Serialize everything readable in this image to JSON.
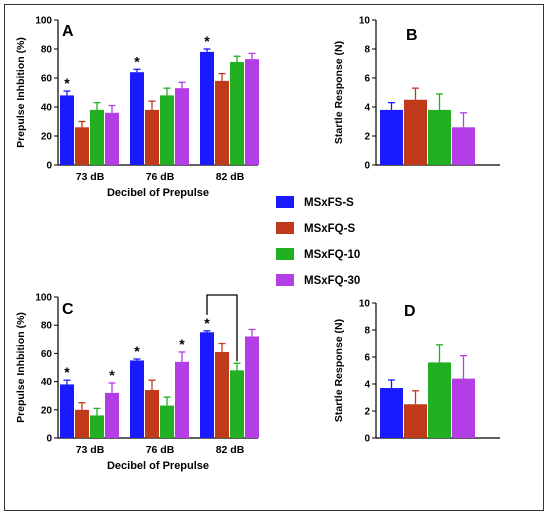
{
  "figure": {
    "legend": [
      {
        "name": "MSxFS-S",
        "color": "#1a1aff"
      },
      {
        "name": "MSxFQ-S",
        "color": "#c0391b"
      },
      {
        "name": "MSxFQ-10",
        "color": "#22b022"
      },
      {
        "name": "MSxFQ-30",
        "color": "#b43ee6"
      }
    ]
  },
  "chart_data": [
    {
      "panel": "A",
      "type": "bar",
      "ylabel": "Prepulse Inhbition (%)",
      "xlabel": "Decibel of Prepulse",
      "ylim": [
        0,
        100
      ],
      "yticks": [
        0,
        20,
        40,
        60,
        80,
        100
      ],
      "categories": [
        "73 dB",
        "76 dB",
        "82 dB"
      ],
      "series": [
        {
          "name": "MSxFS-S",
          "values": [
            48,
            64,
            78
          ],
          "errors": [
            3,
            2,
            2
          ]
        },
        {
          "name": "MSxFQ-S",
          "values": [
            26,
            38,
            58
          ],
          "errors": [
            4,
            6,
            5
          ]
        },
        {
          "name": "MSxFQ-10",
          "values": [
            38,
            48,
            71
          ],
          "errors": [
            5,
            5,
            4
          ]
        },
        {
          "name": "MSxFQ-30",
          "values": [
            36,
            53,
            73
          ],
          "errors": [
            5,
            4,
            4
          ]
        }
      ],
      "annotations": [
        {
          "category": "73 dB",
          "series": "MSxFS-S",
          "text": "*"
        },
        {
          "category": "76 dB",
          "series": "MSxFS-S",
          "text": "*"
        },
        {
          "category": "82 dB",
          "series": "MSxFS-S",
          "text": "*"
        }
      ]
    },
    {
      "panel": "B",
      "type": "bar",
      "ylabel": "Startle Response (N)",
      "xlabel": "",
      "ylim": [
        0,
        10
      ],
      "yticks": [
        0,
        2,
        4,
        6,
        8,
        10
      ],
      "categories": [
        ""
      ],
      "series": [
        {
          "name": "MSxFS-S",
          "values": [
            3.8
          ],
          "errors": [
            0.5
          ]
        },
        {
          "name": "MSxFQ-S",
          "values": [
            4.5
          ],
          "errors": [
            0.8
          ]
        },
        {
          "name": "MSxFQ-10",
          "values": [
            3.8
          ],
          "errors": [
            1.1
          ]
        },
        {
          "name": "MSxFQ-30",
          "values": [
            2.6
          ],
          "errors": [
            1.0
          ]
        }
      ],
      "annotations": []
    },
    {
      "panel": "C",
      "type": "bar",
      "ylabel": "Prepulse Inhbition (%)",
      "xlabel": "Decibel of Prepulse",
      "ylim": [
        0,
        100
      ],
      "yticks": [
        0,
        20,
        40,
        60,
        80,
        100
      ],
      "categories": [
        "73 dB",
        "76 dB",
        "82 dB"
      ],
      "series": [
        {
          "name": "MSxFS-S",
          "values": [
            38,
            55,
            75
          ],
          "errors": [
            3,
            1,
            1
          ]
        },
        {
          "name": "MSxFQ-S",
          "values": [
            20,
            34,
            61
          ],
          "errors": [
            5,
            7,
            6
          ]
        },
        {
          "name": "MSxFQ-10",
          "values": [
            16,
            23,
            48
          ],
          "errors": [
            5,
            6,
            5
          ]
        },
        {
          "name": "MSxFQ-30",
          "values": [
            32,
            54,
            72
          ],
          "errors": [
            7,
            7,
            5
          ]
        }
      ],
      "annotations": [
        {
          "category": "73 dB",
          "series": "MSxFS-S",
          "text": "*"
        },
        {
          "category": "73 dB",
          "series": "MSxFQ-30",
          "text": "*"
        },
        {
          "category": "76 dB",
          "series": "MSxFS-S",
          "text": "*"
        },
        {
          "category": "76 dB",
          "series": "MSxFQ-30",
          "text": "*"
        },
        {
          "category": "82 dB",
          "series": "MSxFS-S",
          "text": "*"
        }
      ],
      "brackets": [
        {
          "category": "82 dB",
          "from": "MSxFS-S",
          "to": "MSxFQ-10"
        }
      ]
    },
    {
      "panel": "D",
      "type": "bar",
      "ylabel": "Startle Response (N)",
      "xlabel": "",
      "ylim": [
        0,
        10
      ],
      "yticks": [
        0,
        2,
        4,
        6,
        8,
        10
      ],
      "categories": [
        ""
      ],
      "series": [
        {
          "name": "MSxFS-S",
          "values": [
            3.7
          ],
          "errors": [
            0.6
          ]
        },
        {
          "name": "MSxFQ-S",
          "values": [
            2.5
          ],
          "errors": [
            1.0
          ]
        },
        {
          "name": "MSxFQ-10",
          "values": [
            5.6
          ],
          "errors": [
            1.3
          ]
        },
        {
          "name": "MSxFQ-30",
          "values": [
            4.4
          ],
          "errors": [
            1.7
          ]
        }
      ],
      "annotations": []
    }
  ]
}
